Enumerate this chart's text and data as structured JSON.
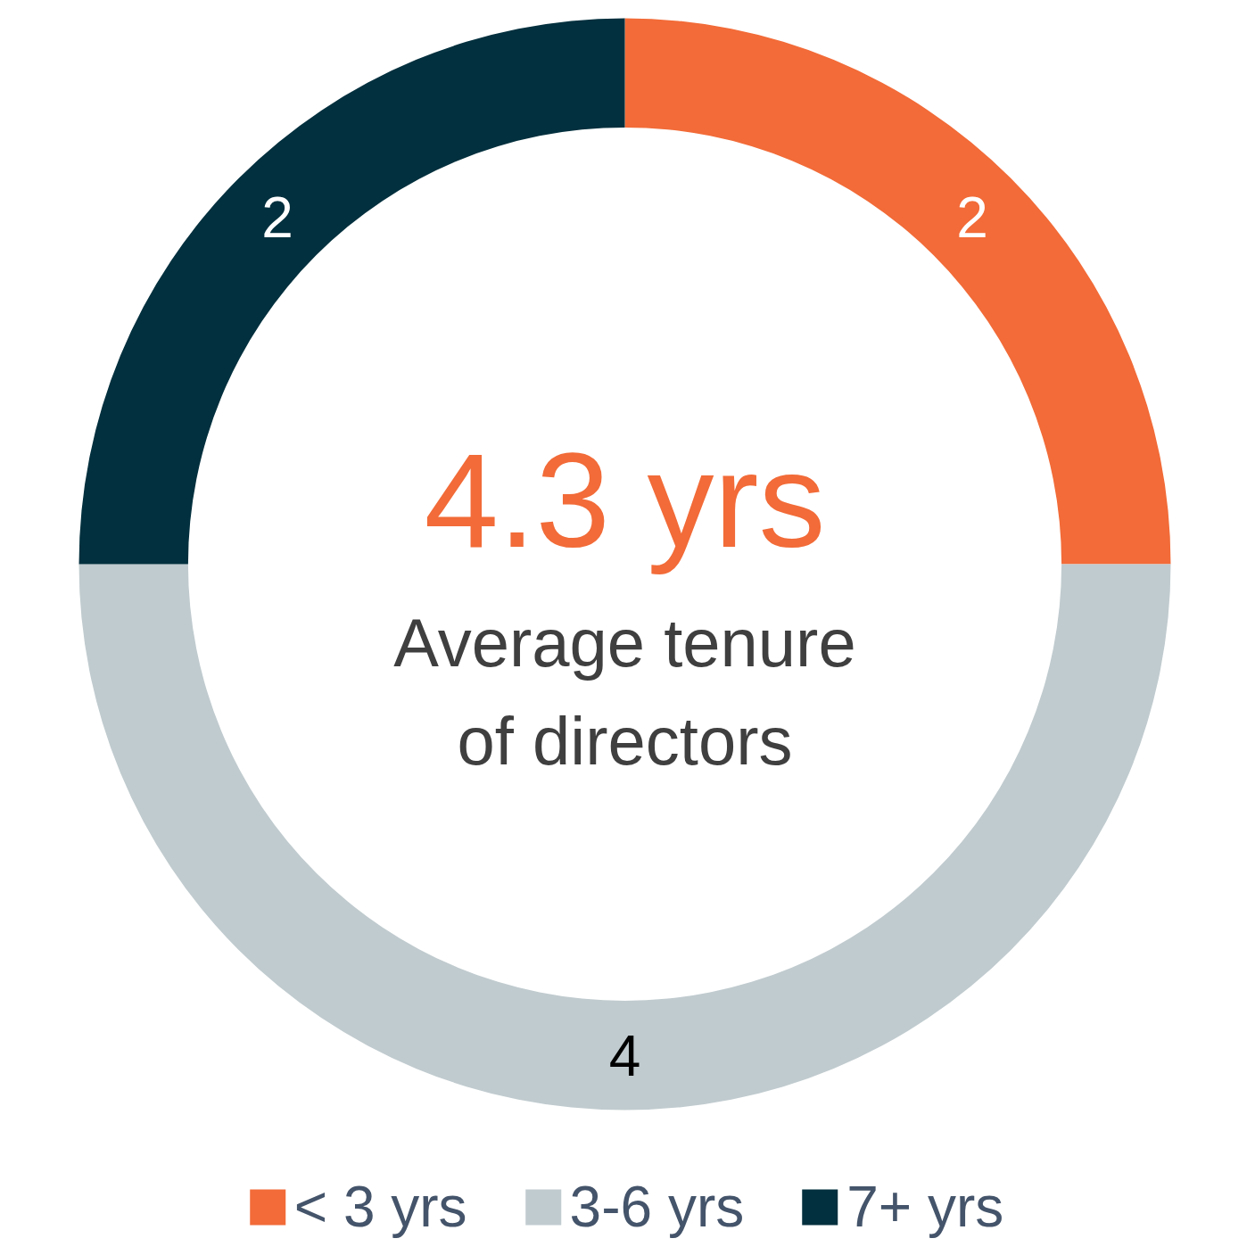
{
  "chart_data": {
    "type": "donut",
    "title": "4.3 yrs",
    "subtitle": "Average tenure of directors",
    "categories": [
      "< 3 yrs",
      "3-6 yrs",
      "7+ yrs"
    ],
    "values": [
      2,
      4,
      2
    ],
    "colors": [
      "#f26b38",
      "#c0cbcf",
      "#03303e"
    ],
    "data_labels": true,
    "legend": "bottom"
  }
}
